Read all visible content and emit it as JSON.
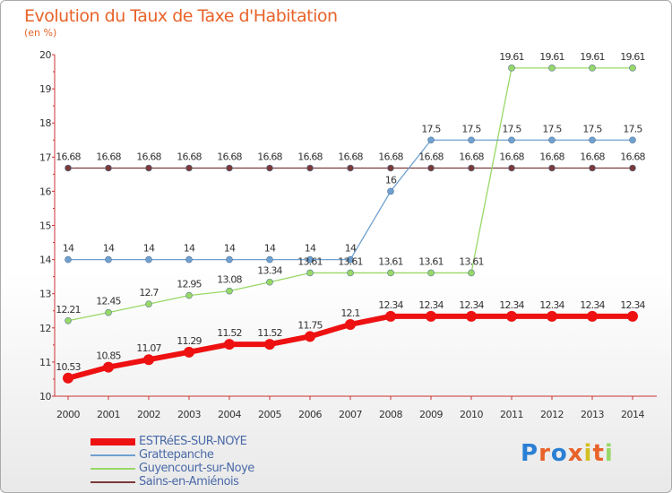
{
  "chart_data": {
    "type": "line",
    "title": "Evolution du Taux de Taxe d'Habitation",
    "subtitle": "(en %)",
    "x": [
      "2000",
      "2001",
      "2002",
      "2003",
      "2004",
      "2005",
      "2006",
      "2007",
      "2008",
      "2009",
      "2010",
      "2011",
      "2012",
      "2013",
      "2014"
    ],
    "ylim": [
      10,
      20
    ],
    "yticks": [
      "10",
      "11",
      "12",
      "13",
      "14",
      "15",
      "16",
      "17",
      "18",
      "19",
      "20"
    ],
    "grid": false,
    "legend_position": "bottom-left",
    "series": [
      {
        "name": "ESTRéES-SUR-NOYE",
        "color": "#ee1111",
        "width": 6,
        "values": [
          10.53,
          10.85,
          11.07,
          11.29,
          11.52,
          11.52,
          11.75,
          12.1,
          12.34,
          12.34,
          12.34,
          12.34,
          12.34,
          12.34,
          12.34
        ],
        "labels": [
          "10.53",
          "10.85",
          "11.07",
          "11.29",
          "11.52",
          "11.52",
          "11.75",
          "12.1",
          "12.34",
          "12.34",
          "12.34",
          "12.34",
          "12.34",
          "12.34",
          "12.34"
        ]
      },
      {
        "name": "Grattepanche",
        "color": "#6fa0d0",
        "width": 1.3,
        "values": [
          14,
          14,
          14,
          14,
          14,
          14,
          14,
          14,
          16,
          17.5,
          17.5,
          17.5,
          17.5,
          17.5,
          17.5
        ],
        "labels": [
          "14",
          "14",
          "14",
          "14",
          "14",
          "14",
          "14",
          "14",
          "16",
          "17.5",
          "17.5",
          "17.5",
          "17.5",
          "17.5",
          "17.5"
        ]
      },
      {
        "name": "Guyencourt-sur-Noye",
        "color": "#99d866",
        "width": 1.3,
        "values": [
          12.21,
          12.45,
          12.7,
          12.95,
          13.08,
          13.34,
          13.61,
          13.61,
          13.61,
          13.61,
          13.61,
          19.61,
          19.61,
          19.61,
          19.61
        ],
        "labels": [
          "12.21",
          "12.45",
          "12.7",
          "12.95",
          "13.08",
          "13.34",
          "13.61",
          "13.61",
          "13.61",
          "13.61",
          "13.61",
          "19.61",
          "19.61",
          "19.61",
          "19.61"
        ]
      },
      {
        "name": "Sains-en-Amiénois",
        "color": "#7a3a3a",
        "width": 1.3,
        "values": [
          16.68,
          16.68,
          16.68,
          16.68,
          16.68,
          16.68,
          16.68,
          16.68,
          16.68,
          16.68,
          16.68,
          16.68,
          16.68,
          16.68,
          16.68
        ],
        "labels": [
          "16.68",
          "16.68",
          "16.68",
          "16.68",
          "16.68",
          "16.68",
          "16.68",
          "16.68",
          "16.68",
          "16.68",
          "16.68",
          "16.68",
          "16.68",
          "16.68",
          "16.68"
        ]
      }
    ]
  },
  "logo": {
    "text": "Proxiti",
    "colors": [
      "#2a7fd4",
      "#e8632a",
      "#2a7fd4",
      "#e8632a",
      "#d4c020",
      "#e8632a",
      "#99d866"
    ]
  }
}
